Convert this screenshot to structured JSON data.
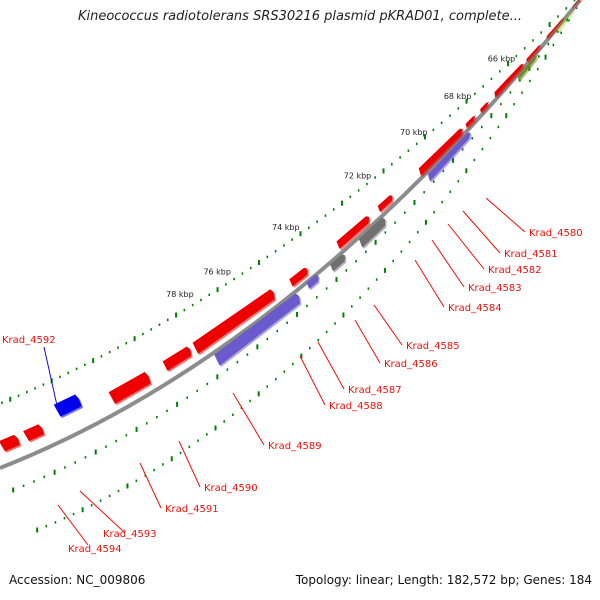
{
  "title": "Kineococcus radiotolerans SRS30216 plasmid pKRAD01, complete...",
  "footer": {
    "accession": "Accession: NC_009806",
    "summary": "Topology: linear; Length: 182,572 bp; Genes: 184"
  },
  "kbp_ticks": [
    "66 kbp",
    "68 kbp",
    "70 kbp",
    "72 kbp",
    "74 kbp",
    "76 kbp",
    "78 kbp"
  ],
  "gene_labels": [
    {
      "text": "Krad_4580",
      "color": "#e8120c"
    },
    {
      "text": "Krad_4581",
      "color": "#e8120c"
    },
    {
      "text": "Krad_4582",
      "color": "#e8120c"
    },
    {
      "text": "Krad_4583",
      "color": "#e8120c"
    },
    {
      "text": "Krad_4584",
      "color": "#e8120c"
    },
    {
      "text": "Krad_4585",
      "color": "#e8120c"
    },
    {
      "text": "Krad_4586",
      "color": "#e8120c"
    },
    {
      "text": "Krad_4587",
      "color": "#e8120c"
    },
    {
      "text": "Krad_4588",
      "color": "#e8120c"
    },
    {
      "text": "Krad_4589",
      "color": "#e8120c"
    },
    {
      "text": "Krad_4590",
      "color": "#e8120c"
    },
    {
      "text": "Krad_4591",
      "color": "#e8120c"
    },
    {
      "text": "Krad_4592",
      "color": "#1010d0"
    },
    {
      "text": "Krad_4593",
      "color": "#e8120c"
    },
    {
      "text": "Krad_4594",
      "color": "#e8120c"
    }
  ],
  "colors": {
    "backbone": "#8c8c8c",
    "cds_red": "#ee0000",
    "cds_blue": "#0000ee",
    "feature_slate": "#6a5acd",
    "feature_gray": "#707070",
    "feature_olive": "#6b8e23",
    "feature_lime": "#9acd32",
    "feature_orange": "#ff8c00",
    "tick_green": "#008000"
  }
}
